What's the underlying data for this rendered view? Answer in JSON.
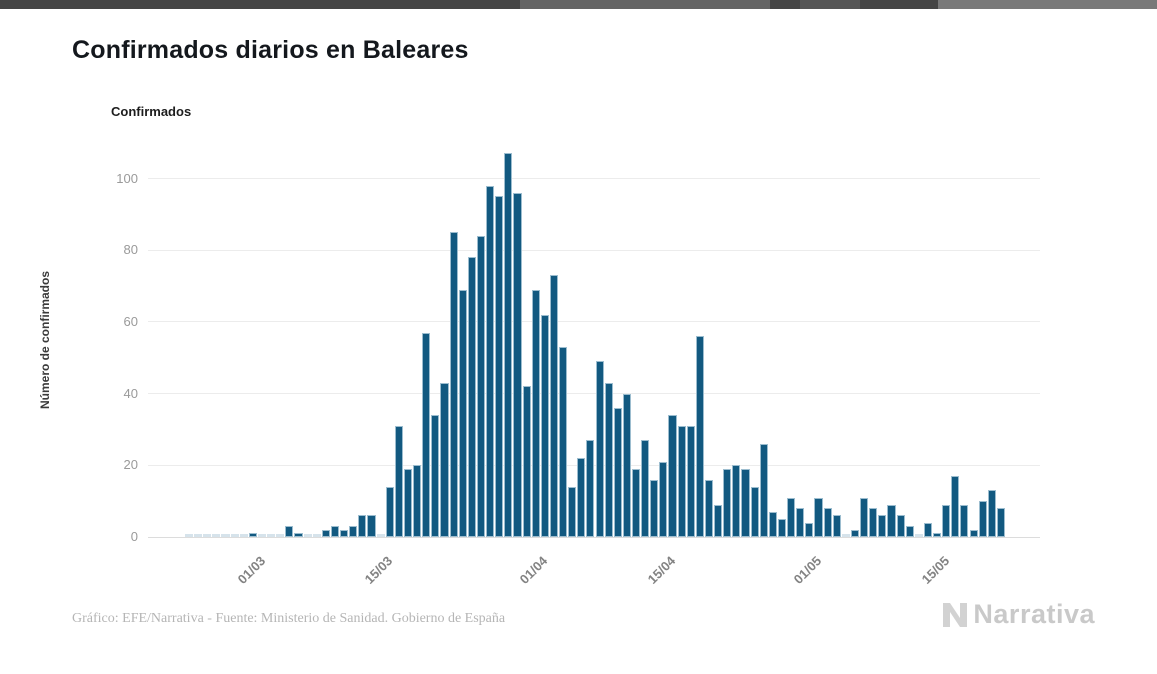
{
  "header": {
    "title": "Confirmados diarios en Baleares"
  },
  "legend": {
    "items": [
      {
        "label": "Confirmados",
        "color": "#125980"
      }
    ]
  },
  "chart_data": {
    "type": "bar",
    "title": "Confirmados diarios en Baleares",
    "xlabel": "",
    "ylabel": "Número de confirmados",
    "legend_position": "top-left",
    "grid": "horizontal",
    "ylim": [
      0,
      110
    ],
    "y_ticks": [
      0,
      20,
      40,
      60,
      80,
      100
    ],
    "x_ticks": [
      {
        "index": 8,
        "label": "01/03"
      },
      {
        "index": 22,
        "label": "15/03"
      },
      {
        "index": 39,
        "label": "01/04"
      },
      {
        "index": 53,
        "label": "15/04"
      },
      {
        "index": 69,
        "label": "01/05"
      },
      {
        "index": 83,
        "label": "15/05"
      }
    ],
    "dates": [
      "22/02",
      "23/02",
      "24/02",
      "25/02",
      "26/02",
      "27/02",
      "28/02",
      "29/02",
      "01/03",
      "02/03",
      "03/03",
      "04/03",
      "05/03",
      "06/03",
      "07/03",
      "08/03",
      "09/03",
      "10/03",
      "11/03",
      "12/03",
      "13/03",
      "14/03",
      "15/03",
      "16/03",
      "17/03",
      "18/03",
      "19/03",
      "20/03",
      "21/03",
      "22/03",
      "23/03",
      "24/03",
      "25/03",
      "26/03",
      "27/03",
      "28/03",
      "29/03",
      "30/03",
      "31/03",
      "01/04",
      "02/04",
      "03/04",
      "04/04",
      "05/04",
      "06/04",
      "07/04",
      "08/04",
      "09/04",
      "10/04",
      "11/04",
      "12/04",
      "13/04",
      "14/04",
      "15/04",
      "16/04",
      "17/04",
      "18/04",
      "19/04",
      "20/04",
      "21/04",
      "22/04",
      "23/04",
      "24/04",
      "25/04",
      "26/04",
      "27/04",
      "28/04",
      "29/04",
      "30/04",
      "01/05",
      "02/05",
      "03/05",
      "04/05",
      "05/05",
      "06/05",
      "07/05",
      "08/05",
      "09/05",
      "10/05",
      "11/05",
      "12/05",
      "13/05",
      "14/05",
      "15/05",
      "16/05",
      "17/05",
      "18/05",
      "19/05",
      "20/05",
      "21/05"
    ],
    "series": [
      {
        "name": "Confirmados",
        "color": "#125980",
        "values": [
          0,
          0,
          0,
          0,
          0,
          0,
          0,
          1,
          0,
          0,
          0,
          3,
          1,
          0,
          0,
          2,
          3,
          2,
          3,
          6,
          6,
          0,
          14,
          31,
          19,
          20,
          57,
          34,
          43,
          85,
          69,
          78,
          84,
          98,
          95,
          107,
          96,
          42,
          69,
          62,
          73,
          53,
          14,
          22,
          27,
          49,
          43,
          36,
          40,
          19,
          27,
          16,
          21,
          34,
          31,
          31,
          56,
          16,
          9,
          19,
          20,
          19,
          14,
          26,
          7,
          5,
          11,
          8,
          4,
          11,
          8,
          6,
          0,
          2,
          11,
          8,
          6,
          9,
          6,
          3,
          0,
          4,
          1,
          9,
          17,
          9,
          2,
          10,
          13,
          8
        ]
      }
    ]
  },
  "footer": {
    "source_text": "Gráfico: EFE/Narrativa - Fuente: Ministerio de Sanidad. Gobierno de España",
    "brand": "Narrativa"
  },
  "colors": {
    "bar": "#125980",
    "bar_stroke": "#9cbdcf",
    "zero_bar": "#d6e3eb",
    "grid": "#ececec",
    "title": "#14181d",
    "tick_label": "#9a9a9a",
    "x_tick_label": "#838383",
    "footer_text": "#b5b5b5",
    "brand_gray": "#c9c9c9",
    "top_bar": "#454545"
  }
}
